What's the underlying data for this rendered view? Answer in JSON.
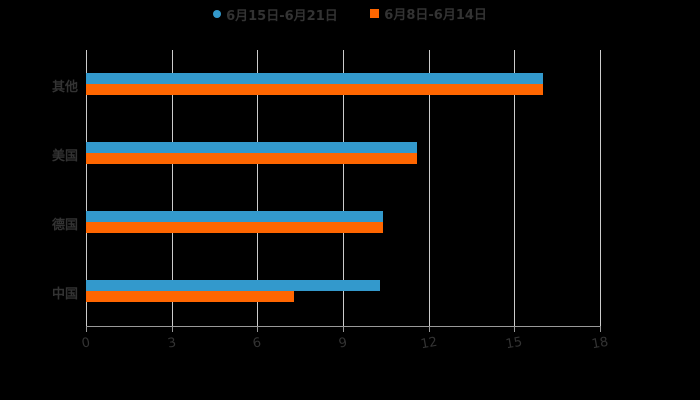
{
  "chart_data": {
    "type": "bar",
    "orientation": "horizontal",
    "categories": [
      "其他",
      "美国",
      "德国",
      "中国"
    ],
    "series": [
      {
        "name": "6月15日-6月21日",
        "color": "#3399cc",
        "values": [
          16.0,
          11.6,
          10.4,
          10.3
        ]
      },
      {
        "name": "6月8日-6月14日",
        "color": "#ff6600",
        "values": [
          16.0,
          11.6,
          10.4,
          7.3
        ]
      }
    ],
    "xlim": [
      0,
      18
    ],
    "xticks": [
      "0",
      "3",
      "6",
      "9",
      "12",
      "15",
      "18"
    ],
    "grid": true,
    "legend_position": "top"
  },
  "legend": {
    "s1": "6月15日-6月21日",
    "s2": "6月8日-6月14日"
  }
}
